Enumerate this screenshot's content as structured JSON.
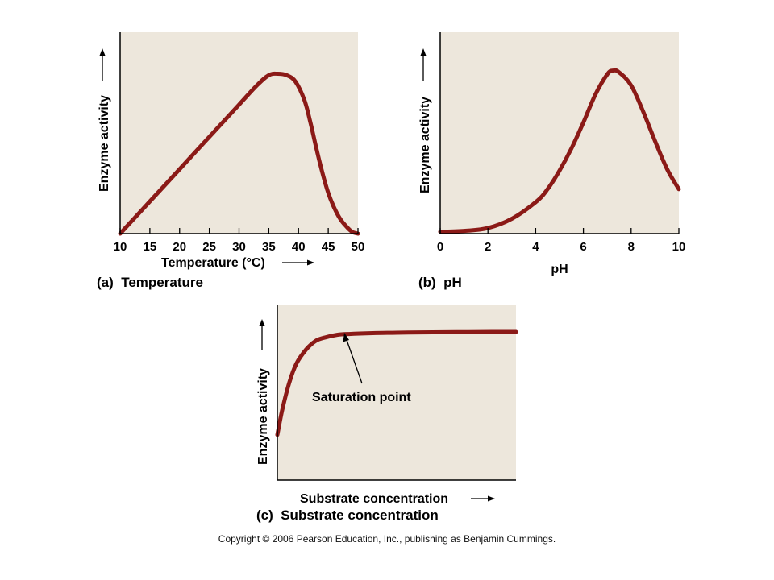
{
  "colors": {
    "plot_background": "#ede7dc",
    "curve": "#8b1a17",
    "axis": "#000000"
  },
  "chart_data": [
    {
      "type": "line",
      "panel_label": "(a)  Temperature",
      "xlabel": "Temperature (°C)",
      "ylabel": "Enzyme activity",
      "xticks": [
        10,
        15,
        20,
        25,
        30,
        35,
        40,
        45,
        50
      ],
      "xlim": [
        10,
        50
      ],
      "ylim": [
        0,
        1
      ],
      "series": [
        {
          "x": [
            10,
            15,
            20,
            25,
            30,
            33,
            35,
            36.5,
            38,
            39.5,
            41,
            42,
            43,
            44,
            45,
            46,
            47,
            48,
            49,
            50
          ],
          "y": [
            0,
            0.174,
            0.348,
            0.522,
            0.696,
            0.8,
            0.855,
            0.863,
            0.855,
            0.82,
            0.72,
            0.6,
            0.46,
            0.33,
            0.22,
            0.14,
            0.08,
            0.04,
            0.01,
            0
          ]
        }
      ]
    },
    {
      "type": "line",
      "panel_label": "(b)  pH",
      "xlabel": "pH",
      "ylabel": "Enzyme activity",
      "xticks": [
        0,
        2,
        4,
        6,
        8,
        10
      ],
      "xlim": [
        0,
        10
      ],
      "ylim": [
        0,
        1
      ],
      "series": [
        {
          "x": [
            0,
            1,
            2,
            3,
            4,
            4.5,
            5,
            5.5,
            6,
            6.5,
            7,
            7.25,
            7.5,
            8,
            8.5,
            9,
            9.5,
            10
          ],
          "y": [
            0.01,
            0.015,
            0.03,
            0.08,
            0.17,
            0.24,
            0.34,
            0.46,
            0.6,
            0.75,
            0.86,
            0.88,
            0.87,
            0.8,
            0.66,
            0.5,
            0.35,
            0.24
          ]
        }
      ]
    },
    {
      "type": "line",
      "panel_label": "(c)  Substrate concentration",
      "xlabel": "Substrate concentration",
      "ylabel": "Enzyme activity",
      "xticks": [],
      "xlim": [
        0,
        1
      ],
      "ylim": [
        0,
        1
      ],
      "annotations": [
        {
          "text": "Saturation point",
          "x": 0.27,
          "y": 0.82
        }
      ],
      "series": [
        {
          "x": [
            0,
            0.02,
            0.05,
            0.08,
            0.12,
            0.16,
            0.2,
            0.25,
            0.3,
            0.4,
            0.5,
            0.6,
            0.7,
            0.8,
            0.9,
            1.0
          ],
          "y": [
            0.26,
            0.4,
            0.56,
            0.67,
            0.75,
            0.8,
            0.82,
            0.835,
            0.84,
            0.845,
            0.847,
            0.849,
            0.85,
            0.851,
            0.852,
            0.852
          ]
        }
      ]
    }
  ],
  "copyright": "Copyright © 2006 Pearson Education, Inc., publishing as Benjamin Cummings."
}
